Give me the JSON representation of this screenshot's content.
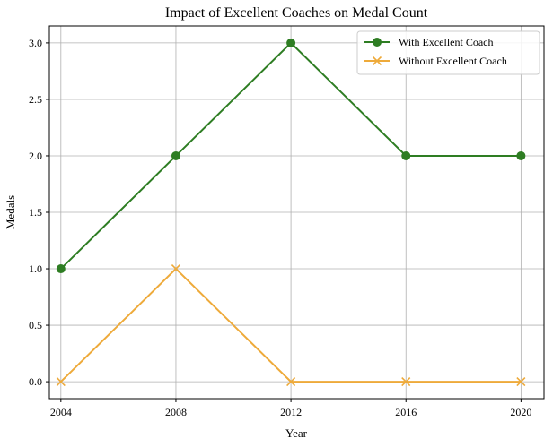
{
  "chart_data": {
    "type": "line",
    "title": "Impact of Excellent Coaches on Medal Count",
    "xlabel": "Year",
    "ylabel": "Medals",
    "x": [
      2004,
      2008,
      2012,
      2016,
      2020
    ],
    "xticks": [
      "2004",
      "2008",
      "2012",
      "2016",
      "2020"
    ],
    "yticks": [
      "0.0",
      "0.5",
      "1.0",
      "1.5",
      "2.0",
      "2.5",
      "3.0"
    ],
    "xlim": [
      2003.6,
      2020.8
    ],
    "ylim": [
      -0.15,
      3.15
    ],
    "grid": true,
    "legend_position": "top-right",
    "series": [
      {
        "name": "With Excellent Coach",
        "values": [
          1,
          2,
          3,
          2,
          2
        ],
        "color": "#2e7d23",
        "marker": "circle"
      },
      {
        "name": "Without Excellent Coach",
        "values": [
          0,
          1,
          0,
          0,
          0
        ],
        "color": "#eeaa3a",
        "marker": "x"
      }
    ]
  }
}
